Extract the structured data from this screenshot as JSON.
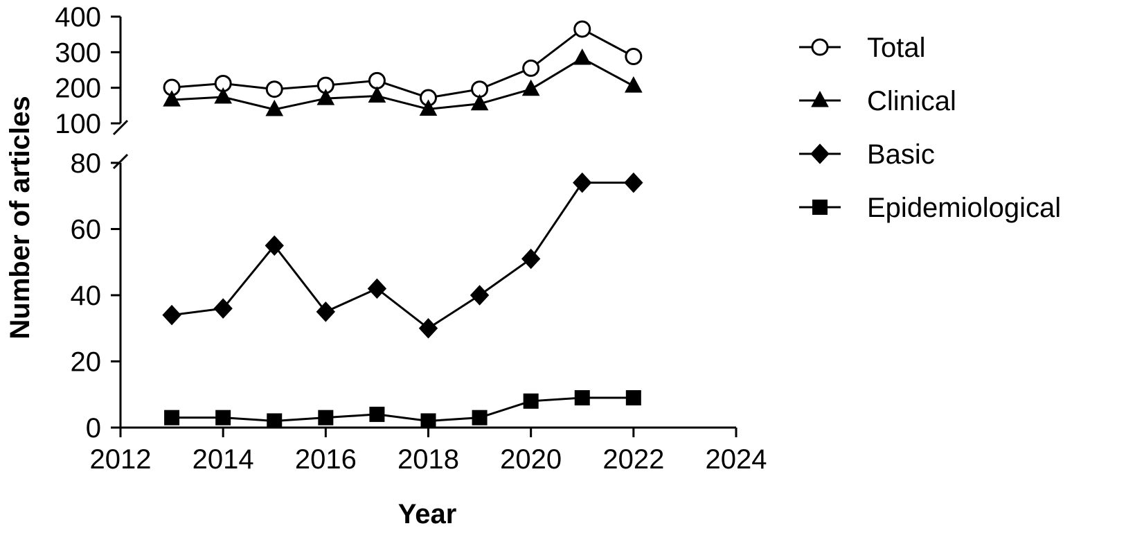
{
  "chart_data": {
    "type": "line",
    "xlabel": "Year",
    "ylabel": "Number of articles",
    "xlim": [
      2012,
      2024
    ],
    "x_ticks": [
      "2012",
      "2014",
      "2016",
      "2018",
      "2020",
      "2022",
      "2024"
    ],
    "y_axis_broken": true,
    "y_lower": {
      "range": [
        0,
        80
      ],
      "ticks": [
        "0",
        "20",
        "40",
        "60",
        "80"
      ]
    },
    "y_upper": {
      "range": [
        100,
        400
      ],
      "ticks": [
        "100",
        "200",
        "300",
        "400"
      ]
    },
    "legend_position": "top-right outside",
    "x": [
      2013,
      2014,
      2015,
      2016,
      2017,
      2018,
      2019,
      2020,
      2021,
      2022
    ],
    "series": [
      {
        "name": "Total",
        "marker": "circle-open",
        "segment": "upper",
        "values": [
          201,
          212,
          196,
          207,
          220,
          172,
          196,
          255,
          365,
          288
        ]
      },
      {
        "name": "Clinical",
        "marker": "triangle",
        "segment": "upper",
        "values": [
          166,
          174,
          139,
          170,
          177,
          140,
          155,
          196,
          283,
          205
        ]
      },
      {
        "name": "Basic",
        "marker": "diamond",
        "segment": "lower",
        "values": [
          34,
          36,
          55,
          35,
          42,
          30,
          40,
          51,
          74,
          74
        ]
      },
      {
        "name": "Epidemiological",
        "marker": "square",
        "segment": "lower",
        "values": [
          3,
          3,
          2,
          3,
          4,
          2,
          3,
          8,
          9,
          9
        ]
      }
    ],
    "colors": {
      "line": "#000000",
      "marker_fill": "#000000",
      "open_marker_fill": "#ffffff"
    }
  }
}
